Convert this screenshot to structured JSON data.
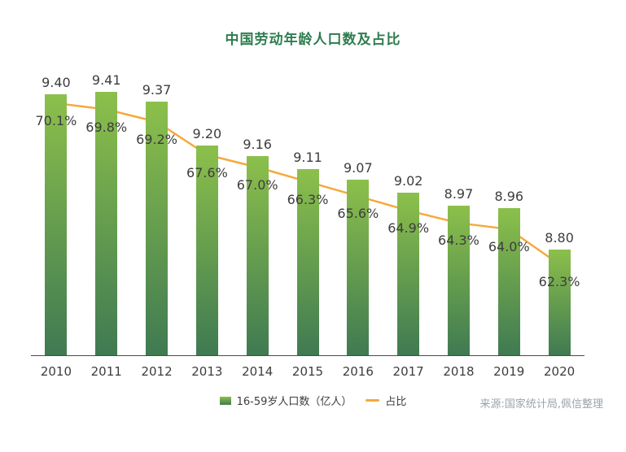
{
  "title": "中国劳动年龄人口数及占比",
  "legend": {
    "bar_label": "16-59岁人口数（亿人）",
    "line_label": "占比"
  },
  "source": "来源:国家统计局,佩信整理",
  "colors": {
    "title": "#2E7D4F",
    "bar_top": "#8CC04B",
    "bar_bottom": "#3F7A52",
    "line": "#F5A93C",
    "axis": "#4A4A4A",
    "label": "#3D3D3D",
    "source_text": "#9BA3A9"
  },
  "chart_data": {
    "type": "bar",
    "title": "中国劳动年龄人口数及占比",
    "categories": [
      "2010",
      "2011",
      "2012",
      "2013",
      "2014",
      "2015",
      "2016",
      "2017",
      "2018",
      "2019",
      "2020"
    ],
    "series": [
      {
        "name": "16-59岁人口数（亿人）",
        "type": "bar",
        "values": [
          9.4,
          9.41,
          9.37,
          9.2,
          9.16,
          9.11,
          9.07,
          9.02,
          8.97,
          8.96,
          8.8
        ],
        "labels": [
          "9.40",
          "9.41",
          "9.37",
          "9.20",
          "9.16",
          "9.11",
          "9.07",
          "9.02",
          "8.97",
          "8.96",
          "8.80"
        ]
      },
      {
        "name": "占比",
        "type": "line",
        "values": [
          70.1,
          69.8,
          69.2,
          67.6,
          67.0,
          66.3,
          65.6,
          64.9,
          64.3,
          64.0,
          62.3
        ],
        "labels": [
          "70.1%",
          "69.8%",
          "69.2%",
          "67.6%",
          "67.0%",
          "66.3%",
          "65.6%",
          "64.9%",
          "64.3%",
          "64.0%",
          "62.3%"
        ]
      }
    ],
    "ylim_bar": [
      8.39,
      9.48
    ],
    "ylim_pct": [
      57.9,
      71.6
    ],
    "grid": false,
    "legend_position": "bottom",
    "data_labels": true
  }
}
